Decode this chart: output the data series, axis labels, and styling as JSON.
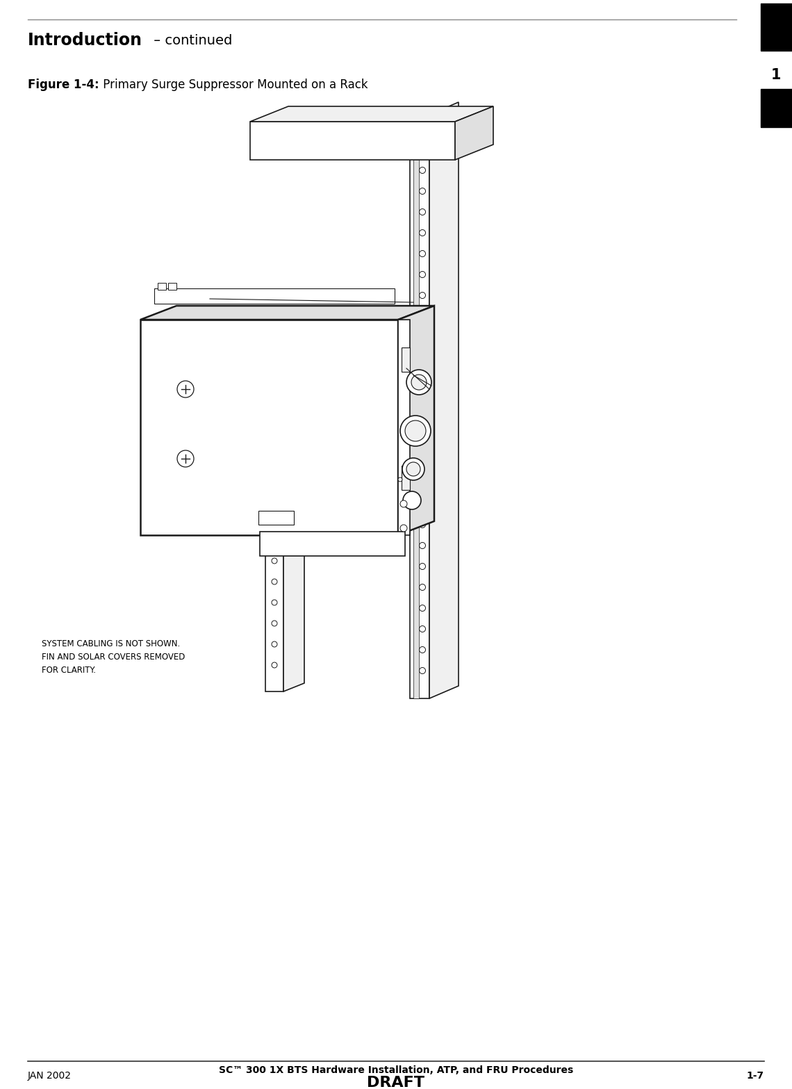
{
  "title_bold": "Introduction",
  "title_regular": " – continued",
  "chapter_number": "1",
  "figure_caption_bold": "Figure 1-4:",
  "figure_caption_regular": " Primary Surge Suppressor Mounted on a Rack",
  "annotation_text": "SYSTEM CABLING IS NOT SHOWN.\nFIN AND SOLAR COVERS REMOVED\nFOR CLARITY.",
  "footer_left": "JAN 2002",
  "footer_center": "SC™ 300 1X BTS Hardware Installation, ATP, and FRU Procedures",
  "footer_draft": "DRAFT",
  "footer_right": "1-7",
  "bg_color": "#ffffff",
  "text_color": "#000000",
  "draw_color": "#1a1a1a",
  "tab_color": "#000000",
  "header_line_color": "#888888",
  "footer_line_color": "#333333"
}
